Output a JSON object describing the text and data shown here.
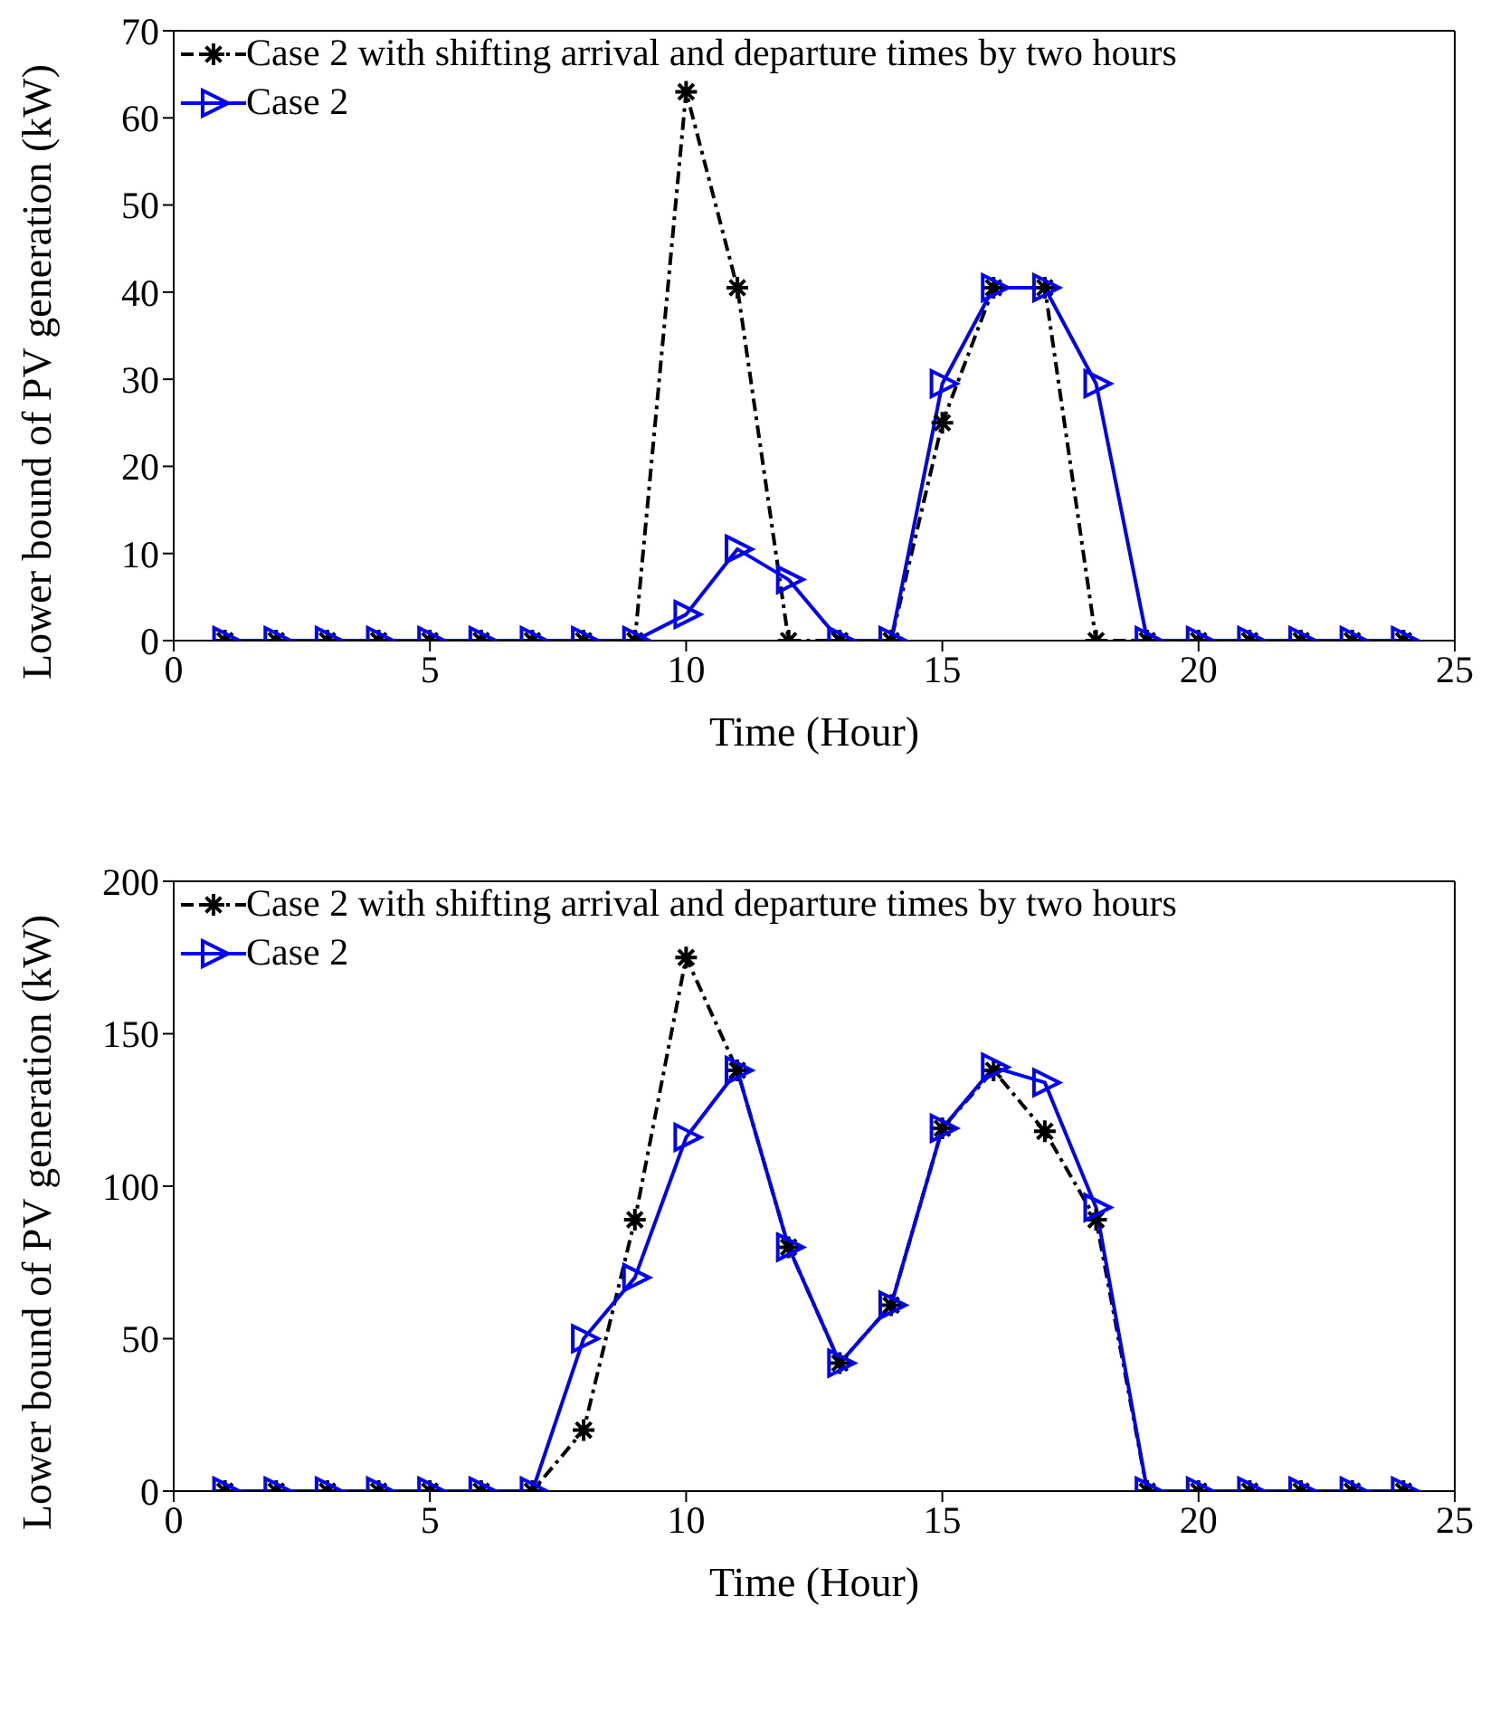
{
  "chart_data": [
    {
      "type": "line",
      "xlabel": "Time (Hour)",
      "ylabel": "Lower bound of PV generation (kW)",
      "x": [
        1,
        2,
        3,
        4,
        5,
        6,
        7,
        8,
        9,
        10,
        11,
        12,
        13,
        14,
        15,
        16,
        17,
        18,
        19,
        20,
        21,
        22,
        23,
        24
      ],
      "xlim": [
        0,
        25
      ],
      "xticks": [
        0,
        5,
        10,
        15,
        20,
        25
      ],
      "ylim": [
        0,
        70
      ],
      "yticks": [
        0,
        10,
        20,
        30,
        40,
        50,
        60,
        70
      ],
      "legend": "top left",
      "grid": false,
      "series": [
        {
          "name": "Case 2 with shifting arrival and departure times by two hours",
          "color": "#000000",
          "marker": "cross",
          "line_style": "dashed",
          "values": [
            0,
            0,
            0,
            0,
            0,
            0,
            0,
            0,
            0,
            63,
            40.5,
            0,
            0,
            0,
            25,
            40.5,
            40.5,
            0,
            0,
            0,
            0,
            0,
            0,
            0
          ]
        },
        {
          "name": "Case 2",
          "color": "#0000ff",
          "marker": "triangle",
          "line_style": "solid",
          "values": [
            0,
            0,
            0,
            0,
            0,
            0,
            0,
            0,
            0,
            3,
            10.5,
            7,
            0,
            0,
            29.5,
            40.5,
            40.5,
            29.5,
            0,
            0,
            0,
            0,
            0,
            0
          ]
        }
      ]
    },
    {
      "type": "line",
      "xlabel": "Time (Hour)",
      "ylabel": "Lower bound of PV generation (kW)",
      "x": [
        1,
        2,
        3,
        4,
        5,
        6,
        7,
        8,
        9,
        10,
        11,
        12,
        13,
        14,
        15,
        16,
        17,
        18,
        19,
        20,
        21,
        22,
        23,
        24
      ],
      "xlim": [
        0,
        25
      ],
      "xticks": [
        0,
        5,
        10,
        15,
        20,
        25
      ],
      "ylim": [
        0,
        200
      ],
      "yticks": [
        0,
        50,
        100,
        150,
        200
      ],
      "legend": "top left",
      "grid": false,
      "series": [
        {
          "name": "Case 2 with shifting arrival and departure times by two hours",
          "color": "#000000",
          "marker": "cross",
          "line_style": "dashed",
          "values": [
            0,
            0,
            0,
            0,
            0,
            0,
            0,
            20,
            89,
            175,
            138,
            80,
            42,
            61,
            119,
            138,
            118,
            89,
            0,
            0,
            0,
            0,
            0,
            0
          ]
        },
        {
          "name": "Case 2",
          "color": "#0000ff",
          "marker": "triangle",
          "line_style": "solid",
          "values": [
            0,
            0,
            0,
            0,
            0,
            0,
            0,
            50,
            70,
            116,
            138,
            80,
            42,
            61,
            119,
            139,
            134,
            93,
            0,
            0,
            0,
            0,
            0,
            0
          ]
        }
      ]
    }
  ]
}
